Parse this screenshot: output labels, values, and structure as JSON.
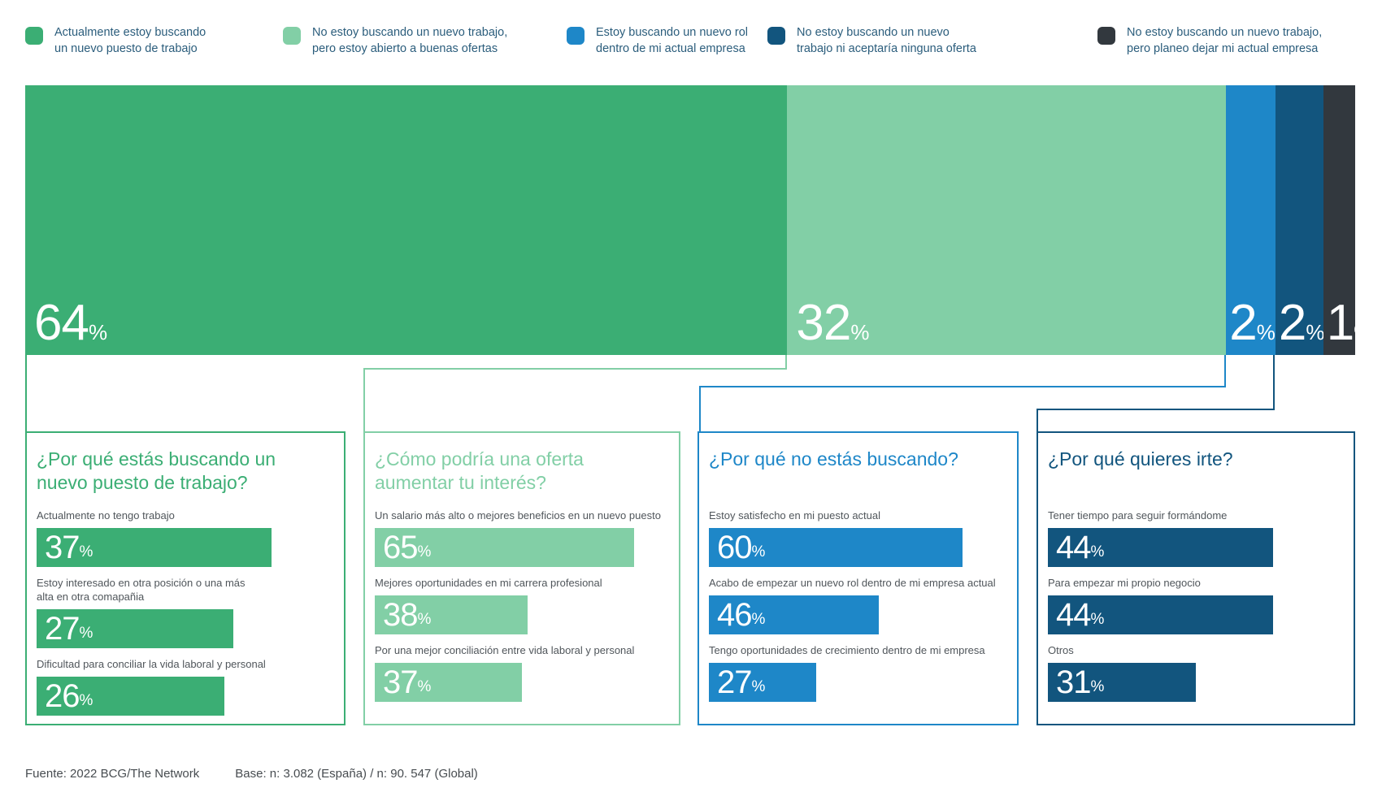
{
  "legend": {
    "items": [
      {
        "label": "Actualmente estoy buscando\nun nuevo puesto de trabajo",
        "color": "#3bae74"
      },
      {
        "label": "No estoy buscando un nuevo trabajo,\npero estoy abierto a buenas ofertas",
        "color": "#82cfa6"
      },
      {
        "label": "Estoy buscando un nuevo rol\ndentro de mi actual empresa",
        "color": "#1e87c8"
      },
      {
        "label": "No estoy buscando un nuevo\ntrabajo ni aceptaría ninguna oferta",
        "color": "#12557e"
      },
      {
        "label": "No estoy buscando un nuevo trabajo,\npero planeo dejar mi actual empresa",
        "color": "#32383e"
      }
    ]
  },
  "chart_data": [
    {
      "type": "bar",
      "subtype": "horizontal-stacked",
      "unit": "%",
      "categories": [
        "Actualmente estoy buscando un nuevo puesto de trabajo",
        "No estoy buscando un nuevo trabajo, pero estoy abierto a buenas ofertas",
        "Estoy buscando un nuevo rol dentro de mi actual empresa",
        "No estoy buscando un nuevo trabajo ni aceptaría ninguna oferta",
        "No estoy buscando un nuevo trabajo, pero planeo dejar mi actual empresa"
      ],
      "values": [
        64,
        32,
        2,
        2,
        1
      ],
      "colors": [
        "#3bae74",
        "#82cfa6",
        "#1e87c8",
        "#12557e",
        "#32383e"
      ],
      "display_width_pct": [
        57.3,
        33.0,
        3.7,
        3.6,
        2.4
      ],
      "legend_position": "top"
    },
    {
      "type": "bar",
      "title": "¿Por qué estás buscando un\nnuevo puesto de trabajo?",
      "color": "#3bae74",
      "unit": "%",
      "categories": [
        "Actualmente no tengo trabajo",
        "Estoy interesado en otra posición o una más\nalta en otra comapañia",
        "Dificultad para conciliar la vida laboral y personal"
      ],
      "values": [
        37,
        27,
        26
      ],
      "display_width_pct": [
        79,
        66,
        63
      ]
    },
    {
      "type": "bar",
      "title": "¿Cómo podría una oferta\naumentar tu interés?",
      "color": "#82cfa6",
      "unit": "%",
      "categories": [
        "Un salario más alto o mejores beneficios en un nuevo puesto",
        "Mejores oportunidades en mi carrera profesional",
        "Por una mejor conciliación entre vida laboral y personal"
      ],
      "values": [
        65,
        38,
        37
      ],
      "display_width_pct": [
        88,
        52,
        50
      ]
    },
    {
      "type": "bar",
      "title": "¿Por qué no estás buscando?",
      "color": "#1e87c8",
      "unit": "%",
      "categories": [
        "Estoy satisfecho en mi puesto actual",
        "Acabo de empezar un nuevo rol dentro de mi empresa actual",
        "Tengo oportunidades de crecimiento dentro de mi empresa"
      ],
      "values": [
        60,
        46,
        27
      ],
      "display_width_pct": [
        85,
        57,
        36
      ]
    },
    {
      "type": "bar",
      "title": "¿Por qué quieres irte?",
      "color": "#12557e",
      "unit": "%",
      "categories": [
        "Tener tiempo para seguir formándome",
        "Para empezar mi propio negocio",
        "Otros"
      ],
      "values": [
        44,
        44,
        31
      ],
      "display_width_pct": [
        76,
        76,
        50
      ]
    }
  ],
  "footer": {
    "source": "Fuente: 2022 BCG/The Network",
    "base": "Base: n: 3.082 (España) / n: 90. 547 (Global)"
  }
}
